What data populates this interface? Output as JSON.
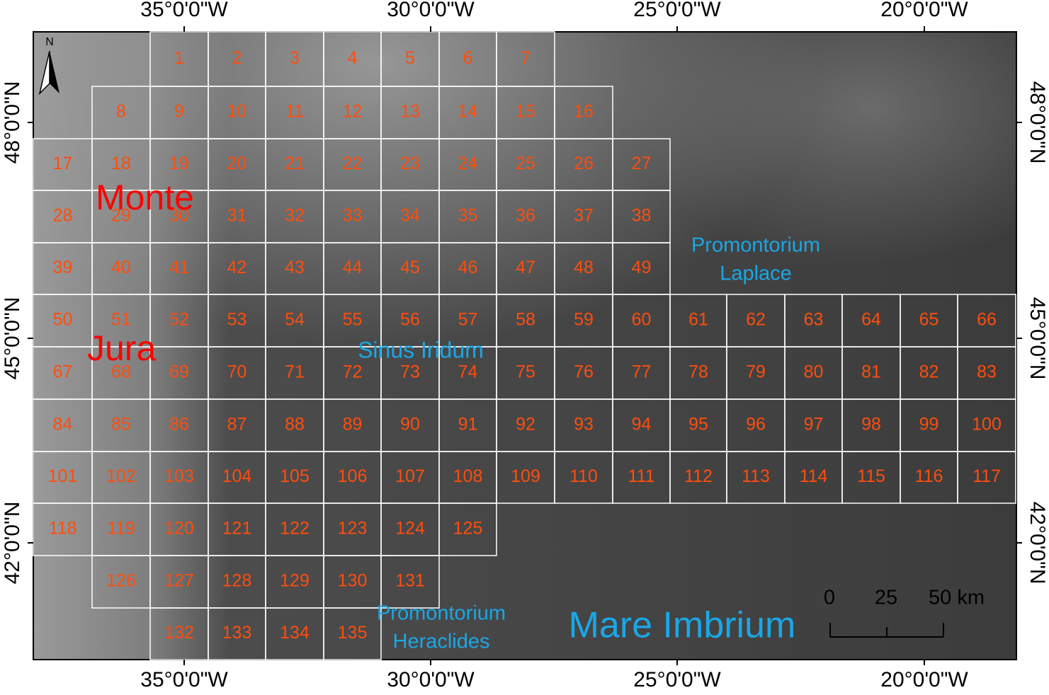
{
  "north_arrow": "N",
  "longitude_labels": [
    "35°0'0\"W",
    "30°0'0\"W",
    "25°0'0\"W",
    "20°0'0\"W"
  ],
  "latitude_labels": [
    "48°0'0\"N",
    "45°0'0\"N",
    "42°0'0\"N"
  ],
  "cells": [
    [
      "1",
      "2",
      "3",
      "4",
      "5",
      "6",
      "7"
    ],
    [
      "8",
      "9",
      "10",
      "11",
      "12",
      "13",
      "14",
      "15",
      "16"
    ],
    [
      "17",
      "18",
      "19",
      "20",
      "21",
      "22",
      "23",
      "24",
      "25",
      "26",
      "27"
    ],
    [
      "28",
      "29",
      "30",
      "31",
      "32",
      "33",
      "34",
      "35",
      "36",
      "37",
      "38"
    ],
    [
      "39",
      "40",
      "41",
      "42",
      "43",
      "44",
      "45",
      "46",
      "47",
      "48",
      "49"
    ],
    [
      "50",
      "51",
      "52",
      "53",
      "54",
      "55",
      "56",
      "57",
      "58",
      "59",
      "60",
      "61",
      "62",
      "63",
      "64",
      "65",
      "66"
    ],
    [
      "67",
      "68",
      "69",
      "70",
      "71",
      "72",
      "73",
      "74",
      "75",
      "76",
      "77",
      "78",
      "79",
      "80",
      "81",
      "82",
      "83"
    ],
    [
      "84",
      "85",
      "86",
      "87",
      "88",
      "89",
      "90",
      "91",
      "92",
      "93",
      "94",
      "95",
      "96",
      "97",
      "98",
      "99",
      "100"
    ],
    [
      "101",
      "102",
      "103",
      "104",
      "105",
      "106",
      "107",
      "108",
      "109",
      "110",
      "111",
      "112",
      "113",
      "114",
      "115",
      "116",
      "117"
    ],
    [
      "118",
      "119",
      "120",
      "121",
      "122",
      "123",
      "124",
      "125"
    ],
    [
      "126",
      "127",
      "128",
      "129",
      "130",
      "131"
    ],
    [
      "132",
      "133",
      "134",
      "135"
    ]
  ],
  "places": {
    "monte": "Monte",
    "jura": "Jura",
    "sinus_iridum": "Sinus Iridum",
    "laplace": [
      "Promontorium",
      "Laplace"
    ],
    "heraclides": [
      "Promontorium",
      "Heraclides"
    ],
    "mare_imbrium": "Mare Imbrium"
  },
  "scale_bar": [
    "0",
    "25",
    "50 km"
  ]
}
